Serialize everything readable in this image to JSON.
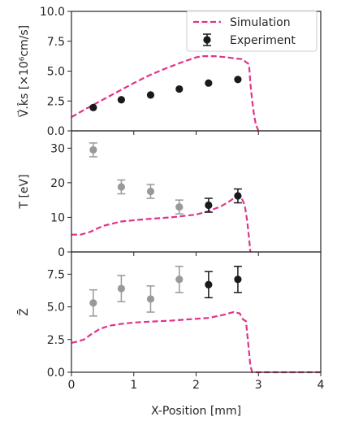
{
  "chart_data": [
    {
      "type": "line",
      "ylabel": "V⃗.k̂s [×10⁶cm/s]",
      "ylim": [
        0,
        10
      ],
      "yticks": [
        "0.0",
        "2.5",
        "5.0",
        "7.5",
        "10.0"
      ],
      "xlim": [
        0,
        4
      ],
      "legend": {
        "placement": "top-right",
        "entries": [
          "Simulation",
          "Experiment"
        ]
      },
      "simulation": {
        "name": "Simulation",
        "x": [
          0,
          0.25,
          0.5,
          0.75,
          1.0,
          1.25,
          1.5,
          1.75,
          2.0,
          2.1,
          2.3,
          2.5,
          2.65,
          2.75,
          2.8,
          2.83,
          2.85,
          2.87,
          2.9,
          2.93,
          2.96,
          3.0
        ],
        "y": [
          1.15,
          1.9,
          2.6,
          3.3,
          4.0,
          4.65,
          5.2,
          5.7,
          6.15,
          6.25,
          6.25,
          6.15,
          6.05,
          6.0,
          5.75,
          5.65,
          5.55,
          4.0,
          2.5,
          1.3,
          0.5,
          0.0
        ]
      },
      "experiment": {
        "name": "Experiment",
        "x": [
          0.35,
          0.8,
          1.27,
          1.73,
          2.2,
          2.67
        ],
        "y": [
          1.95,
          2.6,
          3.0,
          3.5,
          4.0,
          4.3
        ],
        "yerr": [
          0,
          0,
          0,
          0,
          0,
          0
        ],
        "colors": [
          "#1a1a1a",
          "#1a1a1a",
          "#1a1a1a",
          "#1a1a1a",
          "#1a1a1a",
          "#1a1a1a"
        ]
      }
    },
    {
      "type": "line",
      "ylabel": "T [eV]",
      "ylim": [
        0,
        35
      ],
      "yticks": [
        "0",
        "10",
        "20",
        "30"
      ],
      "ytick_values": [
        0,
        10,
        20,
        30
      ],
      "xlim": [
        0,
        4
      ],
      "simulation": {
        "name": "Simulation",
        "x": [
          0,
          0.15,
          0.3,
          0.5,
          0.8,
          1.2,
          1.6,
          2.0,
          2.2,
          2.4,
          2.55,
          2.65,
          2.72,
          2.78,
          2.82,
          2.85,
          2.87
        ],
        "y": [
          5.0,
          5.0,
          5.8,
          7.5,
          8.8,
          9.5,
          10.0,
          10.8,
          11.8,
          13.2,
          14.8,
          16.2,
          16.0,
          13.5,
          9.0,
          4.0,
          0.0
        ]
      },
      "experiment": {
        "name": "Experiment",
        "x": [
          0.35,
          0.8,
          1.27,
          1.73,
          2.2,
          2.67
        ],
        "y": [
          29.5,
          18.8,
          17.5,
          13.0,
          13.5,
          16.2
        ],
        "yerr": [
          2.0,
          2.0,
          2.0,
          2.0,
          2.0,
          2.0
        ],
        "colors": [
          "#999999",
          "#999999",
          "#999999",
          "#999999",
          "#1a1a1a",
          "#1a1a1a"
        ]
      }
    },
    {
      "type": "line",
      "ylabel": "Z̄",
      "ylim": [
        0,
        9.2
      ],
      "yticks": [
        "0.0",
        "2.5",
        "5.0",
        "7.5"
      ],
      "ytick_values": [
        0,
        2.5,
        5.0,
        7.5
      ],
      "xlim": [
        0,
        4
      ],
      "xlabel": "X-Position [mm]",
      "xticks": [
        "0",
        "1",
        "2",
        "3",
        "4"
      ],
      "simulation": {
        "name": "Simulation",
        "x": [
          0,
          0.1,
          0.2,
          0.3,
          0.45,
          0.6,
          0.8,
          1.0,
          1.3,
          1.6,
          1.9,
          2.2,
          2.45,
          2.6,
          2.7,
          2.75,
          2.8,
          2.84,
          2.87,
          2.9,
          3.0,
          4.0
        ],
        "y": [
          2.25,
          2.35,
          2.5,
          2.85,
          3.3,
          3.55,
          3.7,
          3.8,
          3.88,
          3.95,
          4.05,
          4.15,
          4.4,
          4.6,
          4.5,
          4.05,
          3.9,
          2.0,
          0.5,
          0.0,
          0.0,
          0.0
        ]
      },
      "experiment": {
        "name": "Experiment",
        "x": [
          0.35,
          0.8,
          1.27,
          1.73,
          2.2,
          2.67
        ],
        "y": [
          5.3,
          6.4,
          5.6,
          7.1,
          6.7,
          7.1
        ],
        "yerr": [
          1.0,
          1.0,
          1.0,
          1.0,
          1.0,
          1.0
        ],
        "colors": [
          "#999999",
          "#999999",
          "#999999",
          "#999999",
          "#1a1a1a",
          "#1a1a1a"
        ]
      }
    }
  ],
  "colors": {
    "simulation": "#e0338c",
    "experiment_dark": "#1a1a1a",
    "experiment_light": "#999999",
    "axis": "#262626"
  }
}
